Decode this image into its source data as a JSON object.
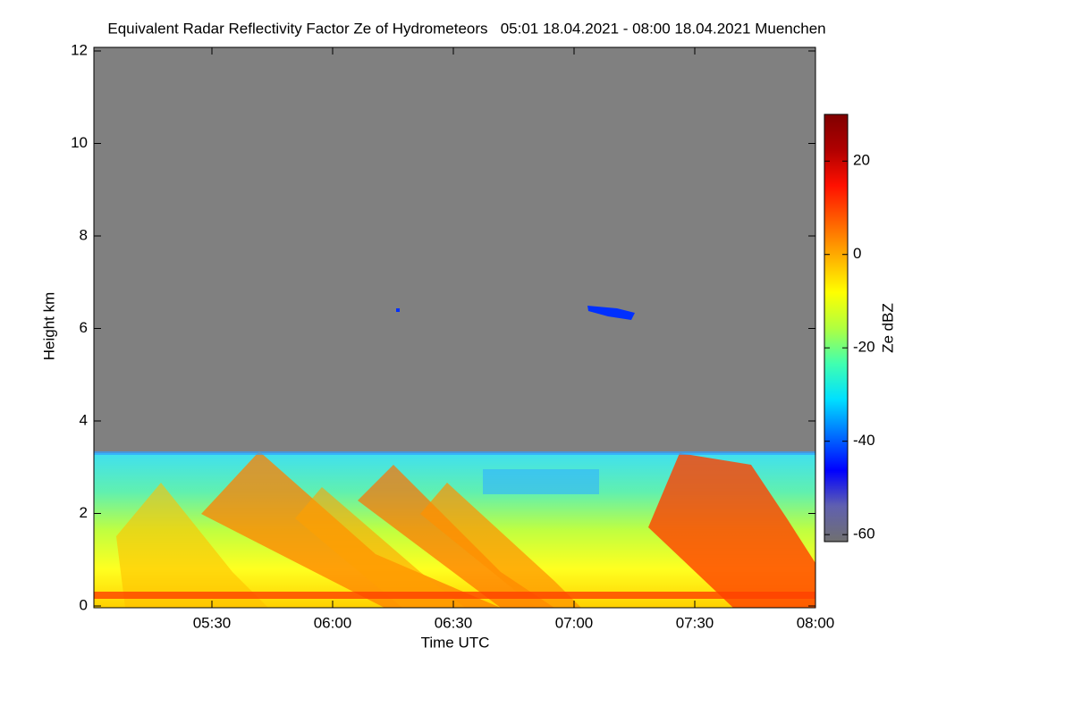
{
  "chart_data": {
    "type": "heatmap",
    "title": "Equivalent Radar Reflectivity Factor Ze of Hydrometeors   05:01 18.04.2021 - 08:00 18.04.2021 Muenchen",
    "x_label": "Time UTC",
    "y_label": "Height km",
    "xlim": [
      301,
      480
    ],
    "xticks": [
      {
        "value": 330,
        "label": "05:30"
      },
      {
        "value": 360,
        "label": "06:00"
      },
      {
        "value": 390,
        "label": "06:30"
      },
      {
        "value": 420,
        "label": "07:00"
      },
      {
        "value": 450,
        "label": "07:30"
      },
      {
        "value": 480,
        "label": "08:00"
      }
    ],
    "ylim": [
      0,
      12
    ],
    "yticks": [
      0,
      2,
      4,
      6,
      8,
      10,
      12
    ],
    "colorbar": {
      "label": "Ze dBZ",
      "lim": [
        -61.5,
        30
      ],
      "ticks": [
        -60,
        -40,
        -20,
        0,
        20
      ],
      "colors": [
        "#707070",
        "#6060b0",
        "#0000ff",
        "#0070ff",
        "#00e0ff",
        "#40ffb0",
        "#b0ff40",
        "#ffff00",
        "#ffb000",
        "#ff6000",
        "#ff1000",
        "#b00000",
        "#800000"
      ]
    }
  }
}
